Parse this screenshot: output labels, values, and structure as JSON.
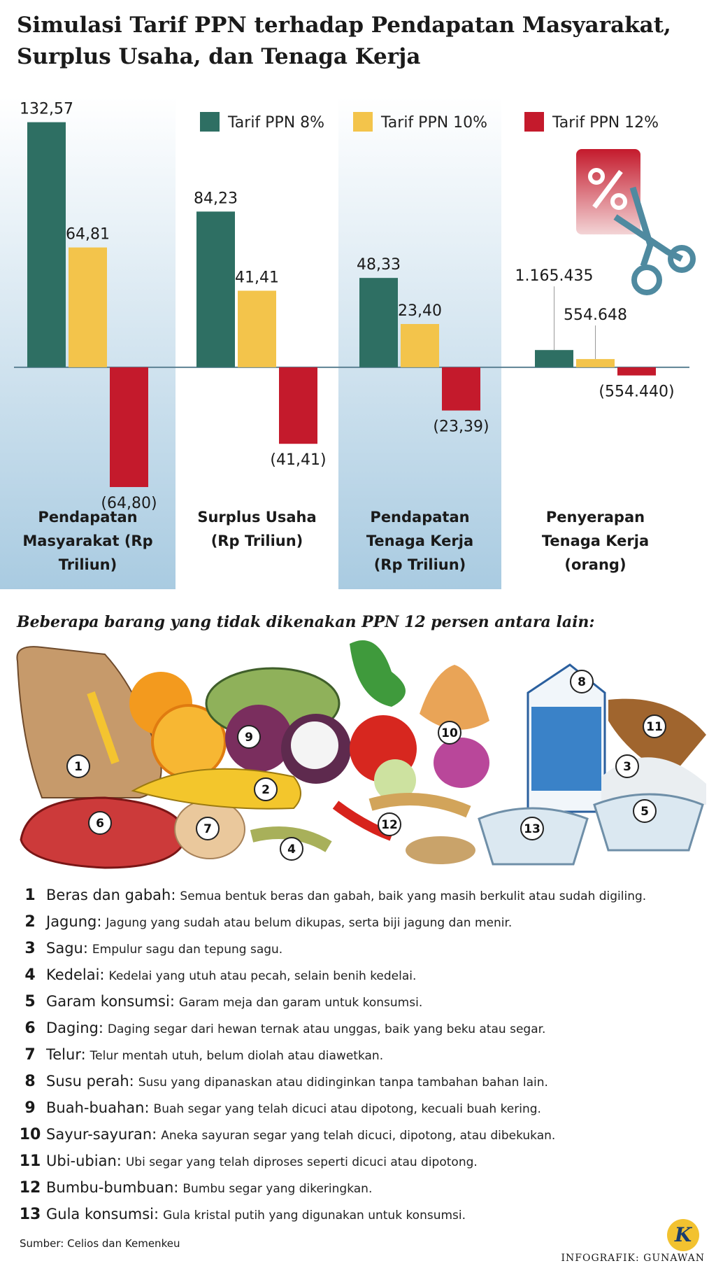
{
  "title": "Simulasi Tarif PPN terhadap Pendapatan Masyarakat, Surplus Usaha, dan Tenaga Kerja",
  "chart_data": {
    "type": "bar",
    "categories": [
      "Pendapatan Masyarakat (Rp Triliun)",
      "Surplus Usaha (Rp Triliun)",
      "Pendapatan Tenaga Kerja (Rp Triliun)",
      "Penyerapan Tenaga Kerja (orang)"
    ],
    "series": [
      {
        "name": "Tarif PPN 8%",
        "color": "#2e6f63",
        "values": [
          132.57,
          84.23,
          48.33,
          1165435
        ],
        "value_labels": [
          "132,57",
          "84,23",
          "48,33",
          "1.165.435"
        ]
      },
      {
        "name": "Tarif PPN 10%",
        "color": "#f3c44b",
        "values": [
          64.81,
          41.41,
          23.4,
          554648
        ],
        "value_labels": [
          "64,81",
          "41,41",
          "23,40",
          "554.648"
        ]
      },
      {
        "name": "Tarif PPN 12%",
        "color": "#c41a2c",
        "values": [
          -64.8,
          -41.41,
          -23.39,
          -554440
        ],
        "value_labels": [
          "(64,80)",
          "(41,41)",
          "(23,39)",
          "(554.440)"
        ]
      }
    ],
    "ylim": [
      [
        -100,
        140
      ],
      [
        -100,
        140
      ],
      [
        -100,
        140
      ],
      [
        -12500000,
        17500000
      ]
    ]
  },
  "subtitle": "Beberapa barang yang tidak dikenakan PPN 12 persen antara lain:",
  "items": [
    {
      "number": 1,
      "name": "Beras dan gabah:",
      "description": "Semua bentuk beras dan gabah, baik yang masih berkulit atau sudah digiling."
    },
    {
      "number": 2,
      "name": "Jagung:",
      "description": "Jagung yang sudah atau belum dikupas, serta biji jagung dan menir."
    },
    {
      "number": 3,
      "name": "Sagu:",
      "description": "Empulur sagu dan tepung sagu."
    },
    {
      "number": 4,
      "name": "Kedelai:",
      "description": "Kedelai yang utuh atau pecah, selain benih kedelai."
    },
    {
      "number": 5,
      "name": "Garam konsumsi:",
      "description": "Garam meja dan garam untuk konsumsi."
    },
    {
      "number": 6,
      "name": "Daging:",
      "description": "Daging segar dari hewan ternak atau unggas, baik yang beku atau segar."
    },
    {
      "number": 7,
      "name": "Telur:",
      "description": "Telur mentah utuh, belum diolah atau diawetkan."
    },
    {
      "number": 8,
      "name": "Susu perah:",
      "description": "Susu yang dipanaskan atau didinginkan tanpa tambahan bahan lain."
    },
    {
      "number": 9,
      "name": "Buah-buahan:",
      "description": "Buah segar yang telah dicuci atau dipotong, kecuali buah kering."
    },
    {
      "number": 10,
      "name": "Sayur-sayuran:",
      "description": "Aneka sayuran segar yang telah dicuci, dipotong, atau dibekukan."
    },
    {
      "number": 11,
      "name": "Ubi-ubian:",
      "description": "Ubi segar yang telah diproses seperti dicuci atau dipotong."
    },
    {
      "number": 12,
      "name": "Bumbu-bumbuan:",
      "description": "Bumbu segar yang dikeringkan."
    },
    {
      "number": 13,
      "name": "Gula konsumsi:",
      "description": "Gula kristal putih yang digunakan untuk konsumsi."
    }
  ],
  "source": "Sumber: Celios dan Kemenkeu",
  "credit": "INFOGRAFIK: GUNAWAN",
  "logo": "K"
}
